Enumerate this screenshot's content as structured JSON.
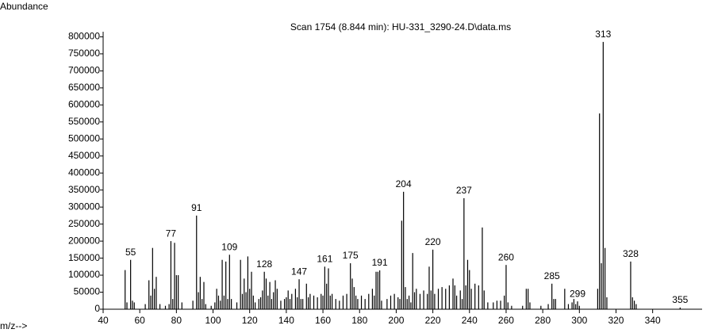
{
  "chart_data": {
    "type": "stick",
    "title": "Scan 1754 (8.844 min): HU-331_3290-24.D\\data.ms",
    "y_label": "Abundance",
    "x_label": "m/z-->",
    "color": "#000000",
    "x": [
      52,
      53,
      55,
      56,
      57,
      63,
      65,
      66,
      67,
      68,
      69,
      71,
      74,
      76,
      77,
      78,
      79,
      80,
      81,
      83,
      89,
      91,
      92,
      93,
      94,
      95,
      96,
      99,
      101,
      102,
      103,
      104,
      105,
      106,
      107,
      108,
      109,
      110,
      113,
      115,
      116,
      117,
      118,
      119,
      120,
      121,
      122,
      123,
      125,
      126,
      127,
      128,
      129,
      130,
      131,
      132,
      133,
      134,
      135,
      137,
      139,
      140,
      141,
      142,
      143,
      145,
      146,
      147,
      148,
      149,
      151,
      152,
      153,
      155,
      157,
      159,
      160,
      161,
      162,
      163,
      164,
      165,
      167,
      169,
      171,
      173,
      175,
      176,
      177,
      178,
      179,
      181,
      183,
      185,
      187,
      188,
      189,
      190,
      191,
      192,
      195,
      197,
      199,
      201,
      202,
      203,
      204,
      205,
      206,
      207,
      208,
      209,
      210,
      211,
      213,
      215,
      217,
      218,
      219,
      220,
      221,
      223,
      225,
      227,
      229,
      231,
      232,
      233,
      235,
      236,
      237,
      238,
      239,
      240,
      241,
      243,
      245,
      247,
      248,
      250,
      253,
      255,
      257,
      259,
      260,
      261,
      263,
      269,
      271,
      272,
      273,
      279,
      283,
      285,
      286,
      287,
      292,
      294,
      296,
      297,
      298,
      299,
      300,
      310,
      311,
      312,
      313,
      314,
      315,
      328,
      329,
      330,
      331,
      355
    ],
    "values": [
      115000,
      20000,
      145000,
      25000,
      20000,
      15000,
      85000,
      40000,
      180000,
      60000,
      95000,
      15000,
      10000,
      15000,
      200000,
      30000,
      195000,
      100000,
      100000,
      20000,
      25000,
      275000,
      50000,
      95000,
      30000,
      80000,
      15000,
      10000,
      20000,
      60000,
      40000,
      25000,
      145000,
      40000,
      140000,
      30000,
      160000,
      30000,
      20000,
      145000,
      45000,
      90000,
      50000,
      155000,
      60000,
      110000,
      40000,
      20000,
      30000,
      35000,
      55000,
      110000,
      90000,
      40000,
      80000,
      30000,
      50000,
      85000,
      60000,
      25000,
      30000,
      35000,
      55000,
      30000,
      45000,
      60000,
      35000,
      88000,
      30000,
      30000,
      75000,
      35000,
      45000,
      40000,
      35000,
      45000,
      40000,
      125000,
      75000,
      120000,
      40000,
      45000,
      30000,
      25000,
      40000,
      45000,
      135000,
      90000,
      65000,
      40000,
      30000,
      40000,
      30000,
      45000,
      60000,
      40000,
      110000,
      110000,
      114000,
      25000,
      30000,
      40000,
      45000,
      35000,
      30000,
      260000,
      345000,
      65000,
      30000,
      40000,
      20000,
      165000,
      50000,
      60000,
      45000,
      55000,
      45000,
      125000,
      55000,
      175000,
      45000,
      60000,
      65000,
      60000,
      70000,
      90000,
      70000,
      40000,
      55000,
      30000,
      326000,
      70000,
      145000,
      115000,
      60000,
      75000,
      70000,
      240000,
      55000,
      20000,
      20000,
      25000,
      25000,
      40000,
      130000,
      20000,
      10000,
      10000,
      60000,
      60000,
      20000,
      10000,
      15000,
      75000,
      30000,
      30000,
      60000,
      15000,
      20000,
      30000,
      15000,
      23000,
      10000,
      60000,
      575000,
      135000,
      785000,
      180000,
      35000,
      140000,
      35000,
      25000,
      15000,
      5000
    ],
    "peak_labels": [
      55,
      77,
      91,
      109,
      128,
      147,
      161,
      175,
      191,
      204,
      220,
      237,
      260,
      285,
      299,
      313,
      328,
      355
    ],
    "xlim": [
      40,
      367
    ],
    "xticks": [
      40,
      60,
      80,
      100,
      120,
      140,
      160,
      180,
      200,
      220,
      240,
      260,
      280,
      300,
      320,
      340
    ],
    "ylim": [
      0,
      815000
    ],
    "yticks": [
      0,
      50000,
      100000,
      150000,
      200000,
      250000,
      300000,
      350000,
      400000,
      450000,
      500000,
      550000,
      600000,
      650000,
      700000,
      750000,
      800000
    ]
  }
}
